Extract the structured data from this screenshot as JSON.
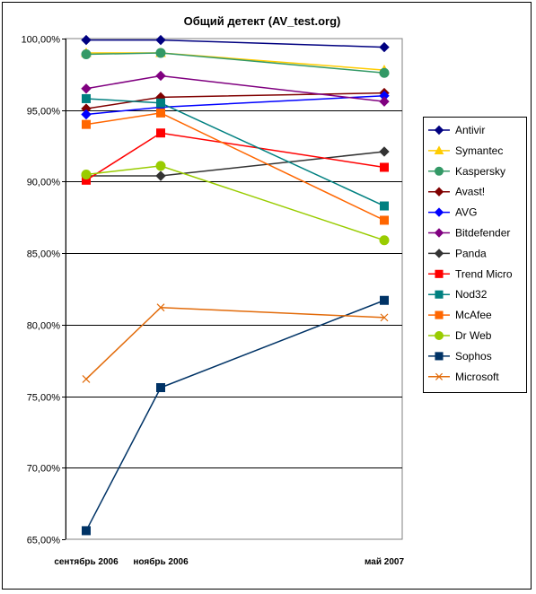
{
  "chart_data": {
    "type": "line",
    "title": "Общий детект (AV_test.org)",
    "xlabel": "",
    "ylabel": "",
    "x": [
      "сентябрь 2006",
      "ноябрь 2006",
      "май 2007"
    ],
    "x_months": [
      0,
      2,
      8
    ],
    "ylim": [
      65,
      100
    ],
    "yticks": [
      "65,00%",
      "70,00%",
      "75,00%",
      "80,00%",
      "85,00%",
      "90,00%",
      "95,00%",
      "100,00%"
    ],
    "grid": true,
    "legend_position": "right",
    "series": [
      {
        "name": "Antivir",
        "color": "#000080",
        "marker": "diamond",
        "values": [
          99.9,
          99.9,
          99.4
        ]
      },
      {
        "name": "Symantec",
        "color": "#FFCC00",
        "marker": "triangle",
        "values": [
          99.0,
          99.0,
          97.8
        ]
      },
      {
        "name": "Kaspersky",
        "color": "#339966",
        "marker": "circle",
        "values": [
          98.9,
          99.0,
          97.6
        ]
      },
      {
        "name": "Avast!",
        "color": "#800000",
        "marker": "diamond",
        "values": [
          95.1,
          95.9,
          96.2
        ]
      },
      {
        "name": "AVG",
        "color": "#0000FF",
        "marker": "diamond",
        "values": [
          94.7,
          95.2,
          96.0
        ]
      },
      {
        "name": "Bitdefender",
        "color": "#800080",
        "marker": "diamond",
        "values": [
          96.5,
          97.4,
          95.6
        ]
      },
      {
        "name": "Panda",
        "color": "#333333",
        "marker": "diamond",
        "values": [
          90.4,
          90.4,
          92.1
        ]
      },
      {
        "name": "Trend Micro",
        "color": "#FF0000",
        "marker": "square",
        "values": [
          90.1,
          93.4,
          91.0
        ]
      },
      {
        "name": "Nod32",
        "color": "#008080",
        "marker": "square",
        "values": [
          95.8,
          95.5,
          88.3
        ]
      },
      {
        "name": "McAfee",
        "color": "#FF6600",
        "marker": "square",
        "values": [
          94.0,
          94.8,
          87.3
        ]
      },
      {
        "name": "Dr Web",
        "color": "#99CC00",
        "marker": "circle",
        "values": [
          90.5,
          91.1,
          85.9
        ]
      },
      {
        "name": "Sophos",
        "color": "#003366",
        "marker": "square",
        "values": [
          65.6,
          75.6,
          81.7
        ]
      },
      {
        "name": "Microsoft",
        "color": "#E26B0A",
        "marker": "x",
        "values": [
          76.2,
          81.2,
          80.5
        ]
      }
    ]
  }
}
